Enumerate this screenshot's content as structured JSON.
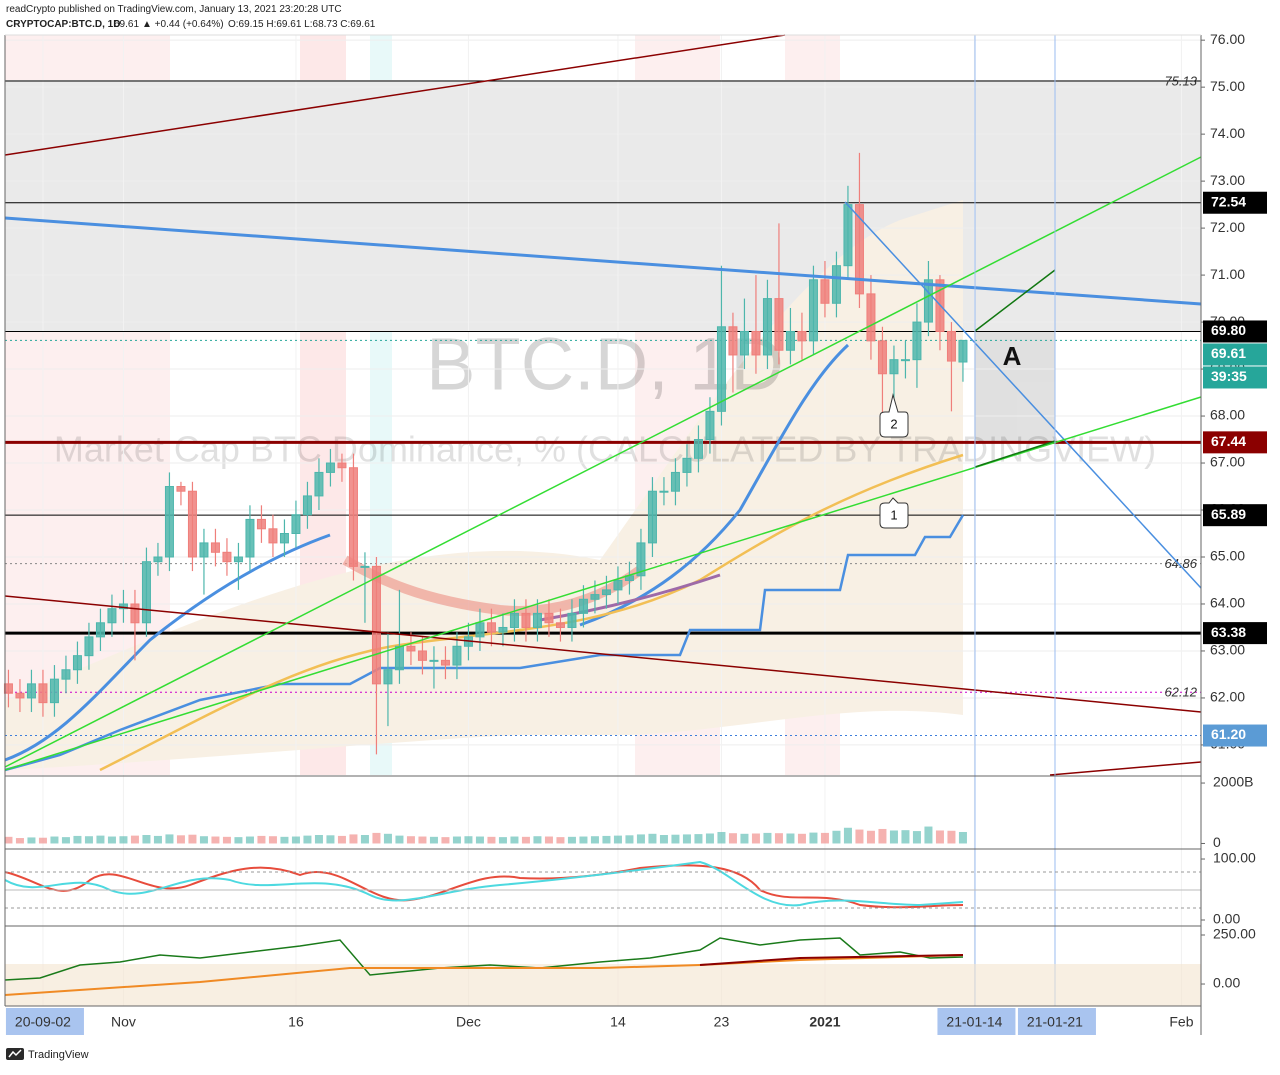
{
  "header": {
    "publisher": "readCrypto published on TradingView.com, January 13, 2021 23:20:28 UTC",
    "symbol": "CRYPTOCAP:BTC.D, 1D",
    "last": "69.61",
    "change": "▲ +0.44 (+0.64%)",
    "ohlc": "O:69.15 H:69.61 L:68.73 C:69.61"
  },
  "watermark": {
    "symbol": "BTC.D, 1D",
    "description": "Market Cap BTC Dominance, % (CALCULATED BY TRADINGVIEW)"
  },
  "annotations": {
    "box": "A",
    "callout_1": "1",
    "callout_2": "2"
  },
  "footer": "TradingView",
  "chart_data": {
    "type": "candlestick",
    "up_color": "#4db6ac",
    "down_color": "#ef7f7b",
    "grid": true,
    "xlim": [
      -0.3,
      103.7
    ],
    "ylim": [
      60.36,
      76.11
    ],
    "xticks": [
      {
        "value": 3,
        "label": "20-09-02",
        "highlight": true
      },
      {
        "value": 10,
        "label": "Nov"
      },
      {
        "value": 25,
        "label": "16"
      },
      {
        "value": 40,
        "label": "Dec"
      },
      {
        "value": 53,
        "label": "14"
      },
      {
        "value": 62,
        "label": "23"
      },
      {
        "value": 71,
        "label": "2021"
      },
      {
        "value": 84,
        "label": "21-01-14",
        "highlight": true
      },
      {
        "value": 91,
        "label": "21-01-21",
        "highlight": true
      },
      {
        "value": 102,
        "label": "Feb"
      }
    ],
    "yticks": [
      {
        "value": 61,
        "label": "61.00"
      },
      {
        "value": 62,
        "label": "62.00"
      },
      {
        "value": 63,
        "label": "63.00"
      },
      {
        "value": 64,
        "label": "64.00"
      },
      {
        "value": 65,
        "label": "65.00"
      },
      {
        "value": 66,
        "label": "66.00"
      },
      {
        "value": 67,
        "label": "67.00"
      },
      {
        "value": 68,
        "label": "68.00"
      },
      {
        "value": 69,
        "label": "69.00"
      },
      {
        "value": 70,
        "label": "70.00"
      },
      {
        "value": 71,
        "label": "71.00"
      },
      {
        "value": 72,
        "label": "72.00"
      },
      {
        "value": 73,
        "label": "73.00"
      },
      {
        "value": 74,
        "label": "74.00"
      },
      {
        "value": 75,
        "label": "75.00"
      },
      {
        "value": 76,
        "label": "76.00"
      }
    ],
    "open": [
      62.3,
      62.1,
      62.0,
      62.3,
      61.9,
      62.4,
      62.6,
      62.9,
      63.3,
      63.6,
      63.9,
      64.0,
      63.6,
      64.9,
      65.0,
      66.5,
      66.4,
      65.0,
      65.3,
      65.1,
      64.9,
      65.0,
      65.8,
      65.6,
      65.3,
      65.5,
      65.9,
      66.3,
      66.8,
      67.0,
      66.9,
      64.8,
      64.8,
      62.3,
      62.6,
      63.1,
      63.0,
      62.8,
      62.8,
      62.7,
      63.1,
      63.3,
      63.6,
      63.4,
      63.5,
      63.8,
      63.5,
      63.8,
      63.6,
      63.5,
      63.8,
      64.1,
      64.2,
      64.3,
      64.5,
      64.6,
      65.3,
      66.4,
      66.4,
      66.8,
      67.1,
      67.5,
      68.1,
      69.9,
      69.3,
      69.8,
      69.3,
      70.5,
      69.4,
      69.8,
      69.6,
      70.9,
      70.4,
      71.2,
      72.5,
      70.6,
      69.6,
      68.9,
      69.2,
      69.2,
      70.0,
      70.9,
      69.8,
      69.15
    ],
    "high": [
      62.6,
      62.4,
      62.6,
      62.6,
      62.7,
      62.9,
      63.2,
      63.6,
      63.9,
      64.2,
      64.3,
      64.3,
      65.2,
      65.3,
      66.8,
      66.6,
      66.6,
      65.6,
      65.6,
      65.4,
      65.3,
      66.1,
      66.1,
      65.9,
      65.8,
      66.2,
      66.6,
      67.1,
      67.3,
      67.2,
      67.2,
      65.1,
      65.0,
      63.4,
      64.3,
      63.4,
      63.3,
      63.1,
      63.1,
      63.4,
      63.6,
      63.9,
      63.9,
      63.8,
      64.1,
      64.1,
      64.1,
      64.1,
      63.9,
      64.1,
      64.4,
      64.5,
      64.6,
      64.8,
      64.9,
      65.6,
      66.7,
      66.7,
      67.1,
      67.4,
      67.8,
      68.4,
      71.2,
      70.2,
      70.5,
      71.0,
      70.9,
      72.1,
      70.3,
      70.2,
      71.2,
      71.3,
      71.5,
      72.9,
      73.6,
      71.0,
      69.9,
      69.5,
      69.6,
      70.4,
      71.3,
      71.0,
      70.0,
      69.61
    ],
    "low": [
      61.8,
      61.7,
      61.7,
      61.6,
      61.6,
      62.1,
      62.3,
      62.6,
      63.0,
      63.3,
      63.6,
      62.8,
      63.3,
      64.6,
      64.7,
      66.1,
      64.7,
      64.2,
      64.8,
      64.6,
      64.3,
      64.7,
      65.3,
      65.0,
      65.0,
      65.2,
      65.6,
      66.0,
      66.5,
      66.6,
      64.5,
      63.6,
      60.8,
      61.4,
      62.3,
      62.7,
      62.5,
      62.2,
      62.4,
      62.4,
      62.8,
      63.0,
      63.1,
      63.1,
      63.2,
      63.2,
      63.2,
      63.3,
      63.2,
      63.2,
      63.5,
      63.8,
      63.9,
      64.0,
      64.2,
      64.3,
      65.0,
      66.1,
      66.1,
      66.5,
      66.8,
      67.2,
      67.8,
      68.5,
      69.0,
      68.9,
      69.0,
      69.1,
      69.1,
      69.2,
      69.3,
      70.1,
      70.1,
      70.9,
      70.3,
      69.2,
      67.7,
      68.0,
      68.8,
      68.6,
      69.7,
      69.4,
      68.1,
      68.73
    ],
    "close": [
      62.1,
      62.0,
      62.3,
      61.9,
      62.4,
      62.6,
      62.9,
      63.3,
      63.6,
      63.9,
      64.0,
      63.6,
      64.9,
      65.0,
      66.5,
      66.4,
      65.0,
      65.3,
      65.1,
      64.9,
      65.0,
      65.8,
      65.6,
      65.3,
      65.5,
      65.9,
      66.3,
      66.8,
      67.0,
      66.9,
      64.8,
      64.8,
      62.3,
      62.6,
      63.1,
      63.0,
      62.8,
      62.8,
      62.7,
      63.1,
      63.3,
      63.6,
      63.4,
      63.5,
      63.8,
      63.5,
      63.8,
      63.6,
      63.5,
      63.8,
      64.1,
      64.2,
      64.3,
      64.5,
      64.6,
      65.3,
      66.4,
      66.4,
      66.8,
      67.1,
      67.5,
      68.1,
      69.9,
      69.3,
      69.8,
      69.3,
      70.5,
      69.4,
      69.8,
      69.6,
      70.9,
      70.4,
      71.2,
      72.5,
      70.6,
      69.6,
      68.9,
      69.2,
      69.2,
      70.0,
      70.9,
      69.8,
      69.17,
      69.61
    ],
    "levels": [
      {
        "value": 75.13,
        "color": "#000000",
        "width": 1,
        "style": "solid",
        "box": false
      },
      {
        "value": 72.54,
        "color": "#000000",
        "width": 1,
        "style": "solid",
        "box": true,
        "label_bg": "#000000"
      },
      {
        "value": 69.8,
        "label": "69.80",
        "color": "#000000",
        "width": 1,
        "style": "solid",
        "box": true,
        "label_bg": "#000000"
      },
      {
        "value": 69.61,
        "color": "#26a69a",
        "width": 1,
        "style": "dotted",
        "box": true,
        "label_bg": "#26a69a"
      },
      {
        "value": 67.44,
        "color": "#8b0000",
        "width": 3,
        "style": "solid",
        "box": true,
        "label_bg": "#8b0000"
      },
      {
        "value": 65.89,
        "color": "#000000",
        "width": 1,
        "style": "solid",
        "box": true,
        "label_bg": "#000000"
      },
      {
        "value": 64.86,
        "color": "#888888",
        "width": 1,
        "style": "dotted",
        "box": false
      },
      {
        "value": 63.38,
        "color": "#000000",
        "width": 3,
        "style": "solid",
        "box": true,
        "label_bg": "#000000"
      },
      {
        "value": 62.12,
        "color": "#cc00cc",
        "width": 1,
        "style": "dotted",
        "box": false
      },
      {
        "value": 61.2,
        "label": "61.20",
        "color": "#3d7edb",
        "width": 1,
        "style": "dotted",
        "box": true,
        "label_bg": "#5b9bd5"
      }
    ],
    "countdown": "39:35",
    "countdown_bg": "#26a69a",
    "volume": {
      "ylim": [
        -150,
        2200
      ],
      "yticks": [
        {
          "value": 0,
          "label": "0"
        },
        {
          "value": 2000,
          "label": "2000B"
        }
      ],
      "values": [
        220,
        180,
        200,
        190,
        230,
        210,
        250,
        240,
        260,
        230,
        240,
        260,
        280,
        250,
        300,
        270,
        290,
        240,
        230,
        220,
        210,
        230,
        250,
        240,
        220,
        230,
        260,
        280,
        270,
        250,
        300,
        280,
        350,
        320,
        260,
        240,
        230,
        220,
        210,
        230,
        240,
        230,
        220,
        210,
        230,
        220,
        240,
        230,
        210,
        220,
        230,
        240,
        250,
        260,
        270,
        300,
        320,
        280,
        290,
        300,
        310,
        330,
        380,
        340,
        320,
        330,
        350,
        340,
        330,
        320,
        360,
        350,
        420,
        520,
        460,
        420,
        480,
        430,
        440,
        410,
        560,
        430,
        420,
        380
      ]
    },
    "indicator_panes": [
      {
        "ylim": [
          -8.2,
          114.8
        ],
        "yticks": [
          {
            "value": 0,
            "label": "0.00"
          },
          {
            "value": 100,
            "label": "100.00"
          }
        ]
      },
      {
        "ylim": [
          -107,
          290.8
        ],
        "yticks": [
          {
            "value": 0,
            "label": "0.00"
          },
          {
            "value": 250,
            "label": "250.00"
          }
        ]
      }
    ]
  }
}
